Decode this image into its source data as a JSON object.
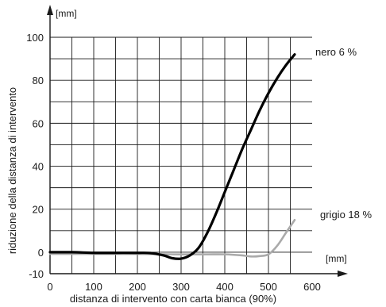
{
  "chart_data": {
    "type": "line",
    "title": "",
    "xlabel": "distanza di intervento con carta bianca (90%)",
    "ylabel": "riduzione della distanza di intervento",
    "x_unit": "[mm]",
    "y_unit": "[mm]",
    "xlim": [
      0,
      600
    ],
    "ylim": [
      -10,
      100
    ],
    "x_ticks": [
      0,
      100,
      200,
      300,
      400,
      500,
      600
    ],
    "y_ticks": [
      -10,
      0,
      20,
      40,
      60,
      80,
      100
    ],
    "x_tick_labels": [
      "0",
      "100",
      "200",
      "300",
      "400",
      "500",
      "600"
    ],
    "y_tick_labels": [
      "-10",
      "0",
      "20",
      "40",
      "60",
      "80",
      "100"
    ],
    "grid": true,
    "grid_step_x": 50,
    "grid_step_y": 10,
    "series": [
      {
        "name": "nero 6 %",
        "color": "#000000",
        "x": [
          0,
          50,
          100,
          150,
          200,
          230,
          260,
          280,
          300,
          320,
          340,
          360,
          380,
          400,
          420,
          440,
          460,
          480,
          500,
          520,
          540,
          560
        ],
        "y": [
          0,
          0,
          -0.3,
          -0.3,
          -0.3,
          -0.4,
          -1.5,
          -2.8,
          -3,
          -1.5,
          2,
          9,
          18,
          28,
          38,
          48,
          57,
          66,
          74,
          81,
          87,
          92
        ]
      },
      {
        "name": "grigio 18 %",
        "color": "#aaaaaa",
        "x": [
          0,
          100,
          200,
          280,
          320,
          360,
          400,
          440,
          460,
          480,
          500,
          520,
          540,
          560
        ],
        "y": [
          -0.8,
          -0.8,
          -0.8,
          -1,
          -1,
          -1,
          -1,
          -1.5,
          -2,
          -1.8,
          -1,
          3,
          9,
          15
        ]
      }
    ]
  }
}
